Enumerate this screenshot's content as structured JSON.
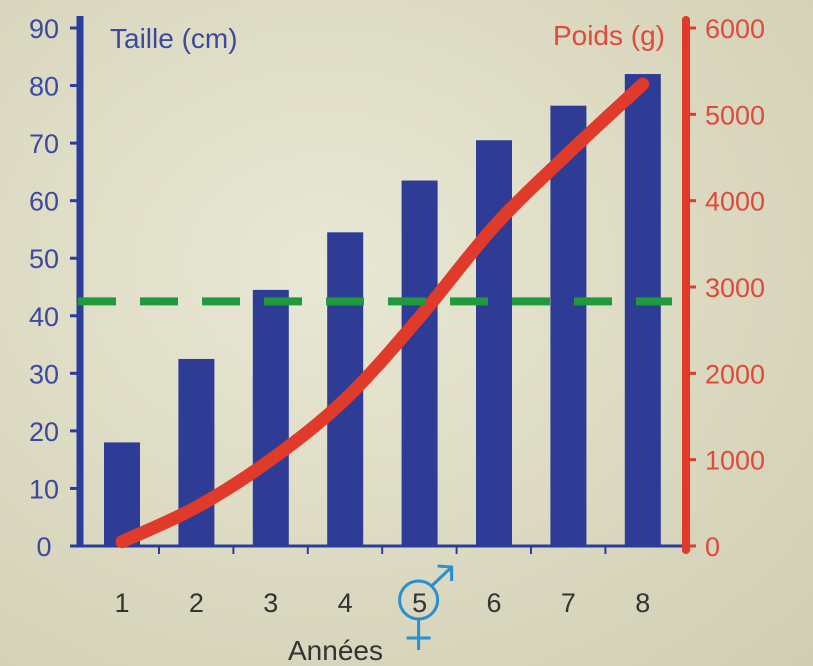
{
  "chart_data": {
    "type": "bar",
    "categories": [
      "1",
      "2",
      "3",
      "4",
      "5",
      "6",
      "7",
      "8"
    ],
    "xlabel": "Années",
    "series": [
      {
        "name": "Taille (cm)",
        "type": "bar",
        "axis": "left",
        "values": [
          18,
          32.5,
          44.5,
          54.5,
          63.5,
          70.5,
          76.5,
          82
        ]
      },
      {
        "name": "Poids (g)",
        "type": "line",
        "axis": "right",
        "values": [
          50,
          450,
          1000,
          1700,
          2650,
          3700,
          4550,
          5350
        ]
      }
    ],
    "y_left": {
      "label": "Taille (cm)",
      "ylim": [
        0,
        90
      ],
      "ticks": [
        0,
        10,
        20,
        30,
        40,
        50,
        60,
        70,
        80,
        90
      ]
    },
    "y_right": {
      "label": "Poids (g)",
      "ylim": [
        0,
        6000
      ],
      "ticks": [
        0,
        1000,
        2000,
        3000,
        4000,
        5000,
        6000
      ]
    },
    "reference_line": {
      "axis": "left",
      "value": 42.5,
      "style": "dashed"
    },
    "highlight": {
      "category": "5",
      "marker": "gender-symbol"
    },
    "grid": false,
    "colors": {
      "bars": "#2e3c96",
      "line": "#e03a2a",
      "left_axis": "#2b3d9c",
      "right_axis": "#e03a2a",
      "dashed_line": "#1f9a3c",
      "highlight": "#2a8fd0"
    }
  }
}
